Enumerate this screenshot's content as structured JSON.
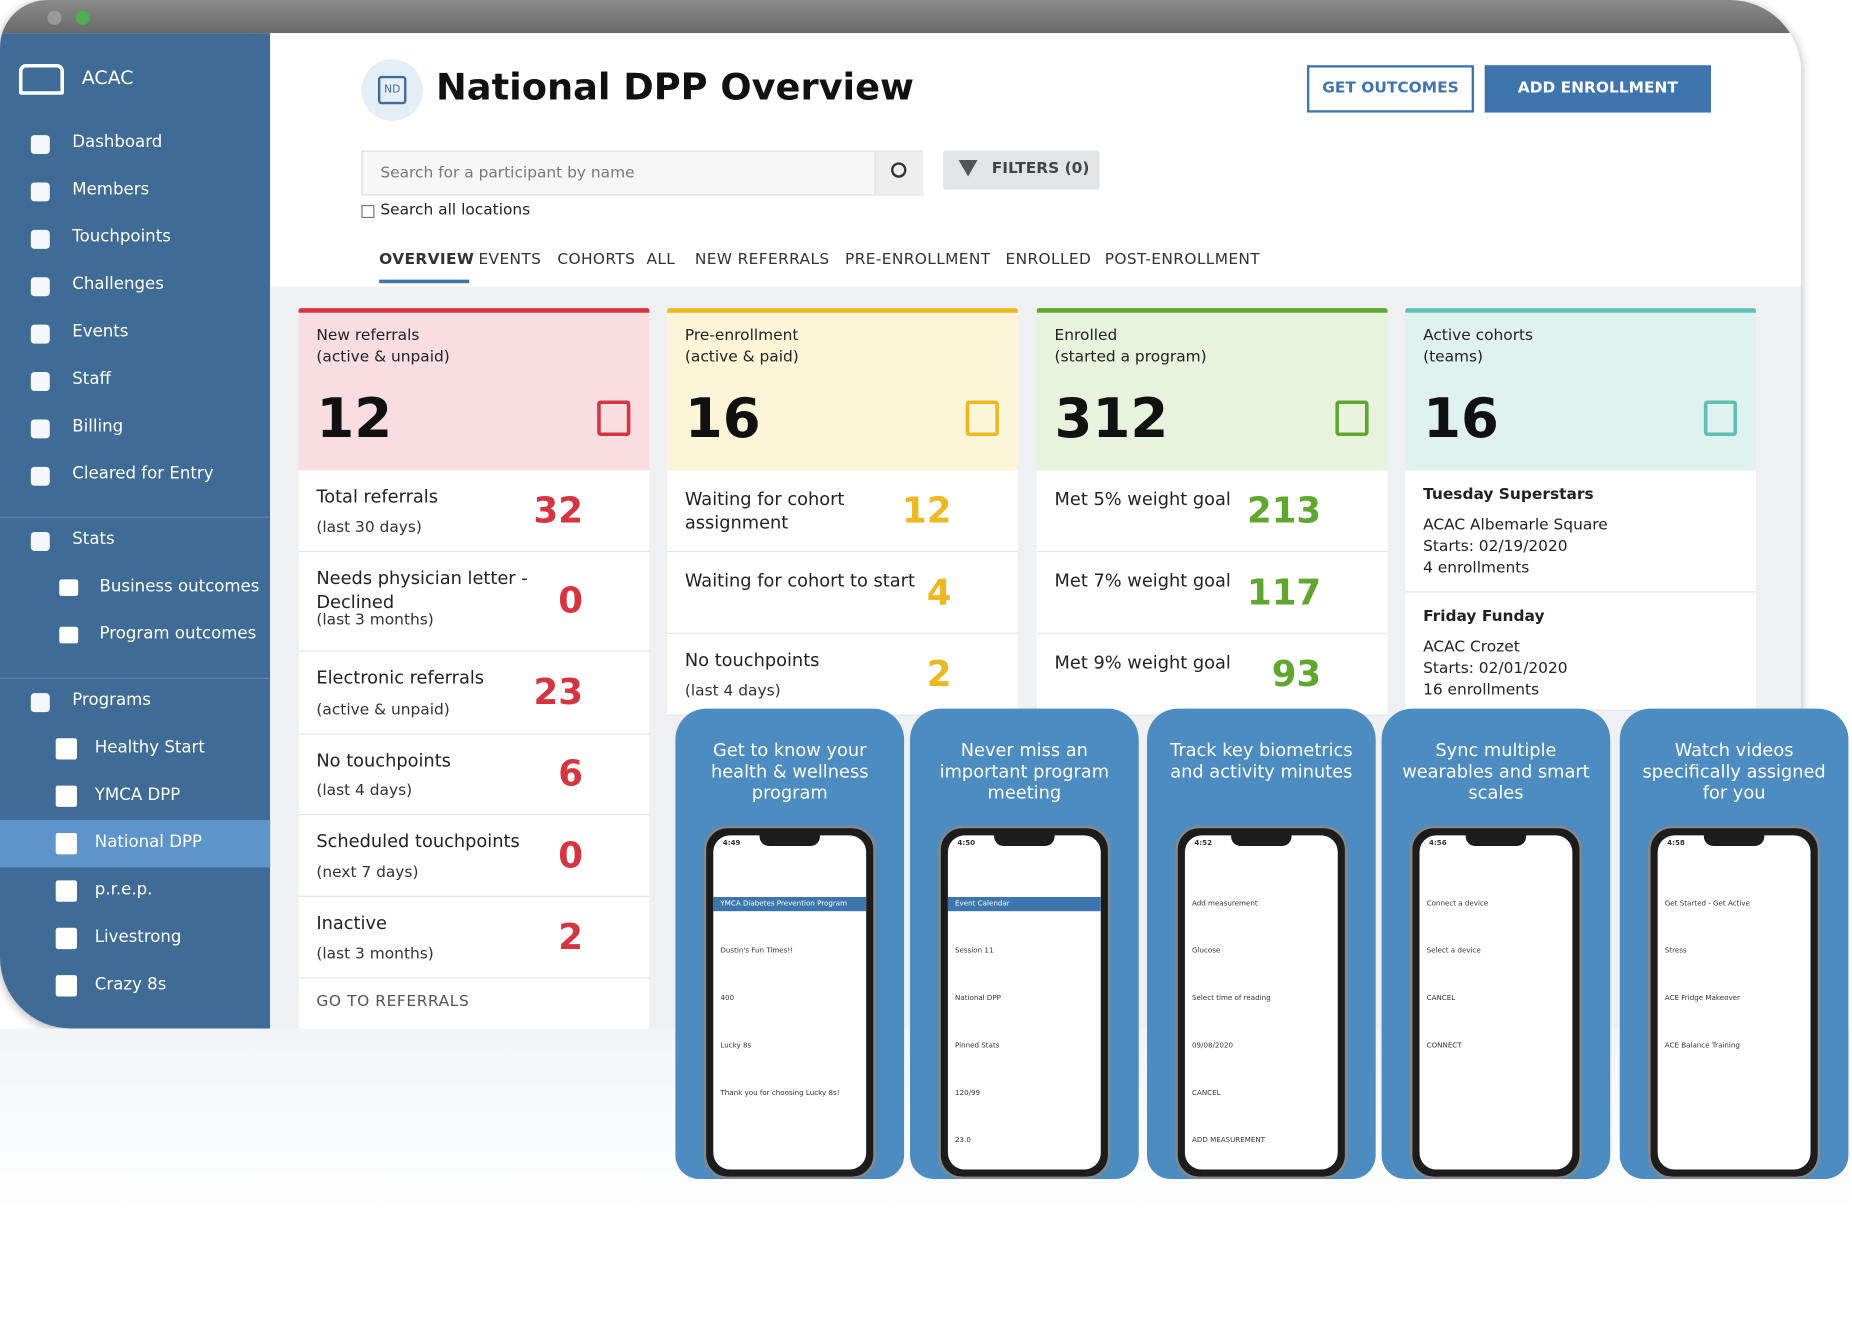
{
  "app": {
    "name": "ACAC"
  },
  "sidebar": {
    "nav": [
      "Dashboard",
      "Members",
      "Touchpoints",
      "Challenges",
      "Events",
      "Staff",
      "Billing",
      "Cleared for Entry"
    ],
    "stats": {
      "label": "Stats",
      "items": [
        "Business outcomes",
        "Program outcomes"
      ]
    },
    "programs": {
      "label": "Programs",
      "items": [
        "Healthy Start",
        "YMCA DPP",
        "National DPP",
        "p.r.e.p.",
        "Livestrong",
        "Crazy 8s"
      ],
      "active": 2
    }
  },
  "header": {
    "badge": "ND",
    "title": "National DPP Overview",
    "buttons": [
      "GET OUTCOMES",
      "ADD ENROLLMENT"
    ]
  },
  "search": {
    "placeholder": "Search for a participant by name",
    "filters": "FILTERS (0)",
    "checkbox": "Search all locations"
  },
  "tabs": {
    "items": [
      "OVERVIEW",
      "EVENTS",
      "COHORTS",
      "ALL",
      "NEW REFERRALS",
      "PRE-ENROLLMENT",
      "ENROLLED",
      "POST-ENROLLMENT"
    ],
    "active": 0
  },
  "cards": [
    {
      "title": "New referrals",
      "subtitle": "(active & unpaid)",
      "value": 12,
      "color": "#d6343f",
      "tint": "#f9dde1",
      "rows": [
        {
          "label": "Total referrals",
          "sub": "(last 30 days)",
          "value": 32
        },
        {
          "label": "Needs physician letter - Declined",
          "sub": "(last 3 months)",
          "value": 0
        },
        {
          "label": "Electronic referrals",
          "sub": "(active & unpaid)",
          "value": 23
        },
        {
          "label": "No touchpoints",
          "sub": "(last 4 days)",
          "value": 6
        },
        {
          "label": "Scheduled touchpoints",
          "sub": "(next 7 days)",
          "value": 0
        },
        {
          "label": "Inactive",
          "sub": "(last 3 months)",
          "value": 2
        }
      ],
      "link": "GO TO REFERRALS"
    },
    {
      "title": "Pre-enrollment",
      "subtitle": "(active & paid)",
      "value": 16,
      "color": "#eeb824",
      "tint": "#fdf5d8",
      "rows": [
        {
          "label": "Waiting for cohort assignment",
          "value": 12
        },
        {
          "label": "Waiting for cohort to start",
          "value": 4
        },
        {
          "label": "No touchpoints",
          "sub": "(last 4 days)",
          "value": 2
        }
      ]
    },
    {
      "title": "Enrolled",
      "subtitle": "(started a program)",
      "value": 312,
      "color": "#5fa72e",
      "tint": "#e7f3dc",
      "rows": [
        {
          "label": "Met 5% weight goal",
          "value": 213
        },
        {
          "label": "Met 7% weight goal",
          "value": 117
        },
        {
          "label": "Met 9% weight goal",
          "value": 93
        }
      ]
    },
    {
      "title": "Active cohorts",
      "subtitle": "(teams)",
      "value": 16,
      "color": "#5ec0b2",
      "tint": "#dff2ef",
      "cohorts": [
        {
          "name": "Tuesday Superstars",
          "location": "ACAC Albemarle Square",
          "starts": "Starts: 02/19/2020",
          "enrollments": "4 enrollments"
        },
        {
          "name": "Friday Funday",
          "location": "ACAC Crozet",
          "starts": "Starts: 02/01/2020",
          "enrollments": "16 enrollments"
        }
      ]
    }
  ],
  "phones": [
    {
      "caption": "Get to know your health & wellness program",
      "screen": [
        "4:49",
        "YMCA Diabetes Prevention Program",
        "Dustin's Fun Times!!",
        "400",
        "Lucky 8s",
        "Thank you for choosing Lucky 8s!"
      ]
    },
    {
      "caption": "Never miss an important program meeting",
      "screen": [
        "4:50",
        "Event Calendar",
        "Session 11",
        "National DPP",
        "Pinned Stats",
        "120/99",
        "23.0"
      ]
    },
    {
      "caption": "Track key biometrics and activity minutes",
      "screen": [
        "4:52",
        "Add measurement",
        "Glucose",
        "Select time of reading",
        "09/08/2020",
        "CANCEL",
        "ADD MEASUREMENT"
      ]
    },
    {
      "caption": "Sync multiple wearables and smart scales",
      "screen": [
        "4:56",
        "Connect a device",
        "Select a device",
        "CANCEL",
        "CONNECT"
      ]
    },
    {
      "caption": "Watch videos specifically assigned for you",
      "screen": [
        "4:58",
        "Get Started - Get Active",
        "Stress",
        "ACE Fridge Makeover",
        "ACE Balance Training"
      ]
    }
  ]
}
